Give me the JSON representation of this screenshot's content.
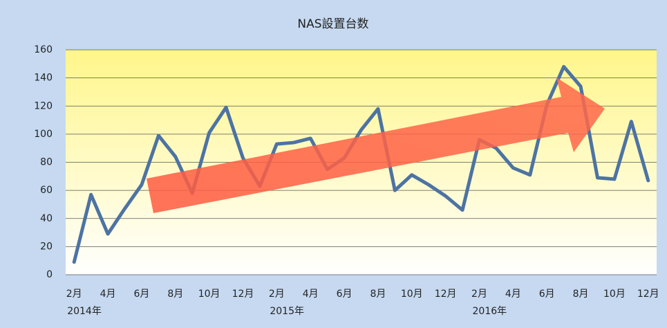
{
  "chart_data": {
    "type": "line",
    "title": "NAS設置台数",
    "categories": [
      "2月",
      null,
      "4月",
      null,
      "6月",
      null,
      "8月",
      null,
      "10月",
      null,
      "12月",
      null,
      "2月",
      null,
      "4月",
      null,
      "6月",
      null,
      "8月",
      null,
      "10月",
      null,
      "12月",
      null,
      "2月",
      null,
      "4月",
      null,
      "6月",
      null,
      "8月",
      null,
      "10月",
      null,
      "12月"
    ],
    "years": [
      "2014年",
      null,
      null,
      null,
      null,
      null,
      null,
      null,
      null,
      null,
      null,
      null,
      "2015年",
      null,
      null,
      null,
      null,
      null,
      null,
      null,
      null,
      null,
      null,
      null,
      "2016年",
      null,
      null,
      null,
      null,
      null,
      null,
      null,
      null,
      null,
      null
    ],
    "values": [
      9,
      57,
      29,
      47,
      64,
      99,
      84,
      58,
      101,
      119,
      83,
      63,
      93,
      94,
      97,
      75,
      83,
      103,
      118,
      60,
      71,
      64,
      56,
      46,
      96,
      90,
      76,
      71,
      121,
      148,
      134,
      69,
      68,
      109,
      67
    ],
    "color": "#4d73a3",
    "ylim": [
      0,
      160
    ],
    "yticks": [
      0,
      20,
      40,
      60,
      80,
      100,
      120,
      140,
      160
    ],
    "grid": true
  }
}
